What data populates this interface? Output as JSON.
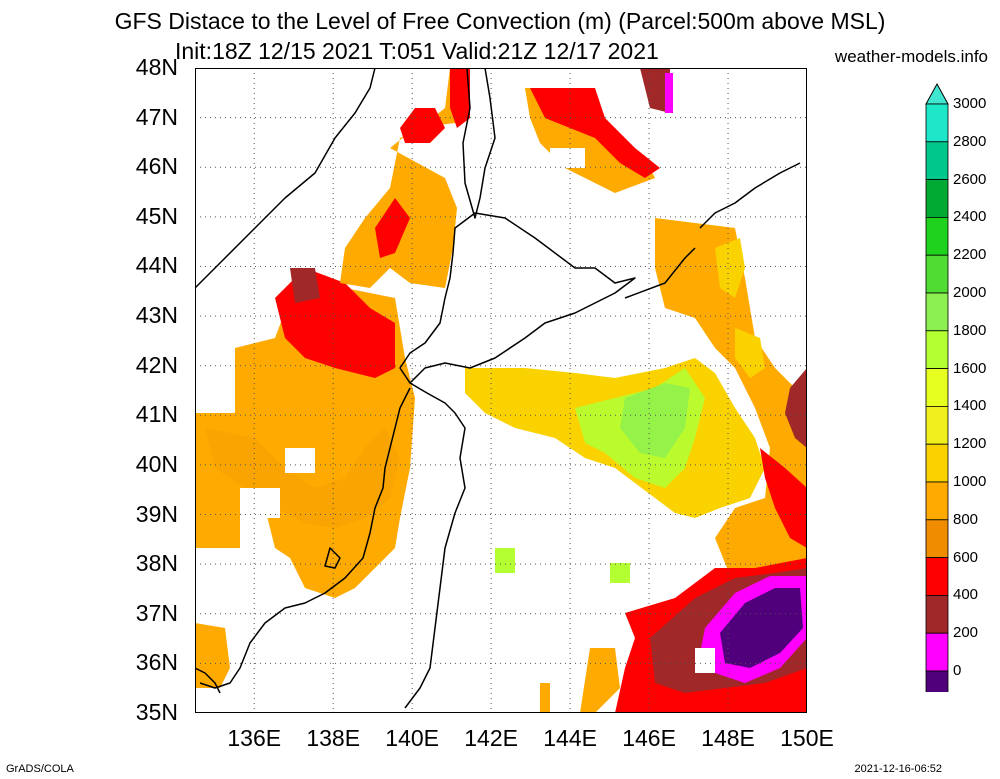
{
  "header": {
    "title": "GFS Distace to the Level of Free Convection (m) (Parcel:500m above MSL)",
    "subtitle": "Init:18Z 12/15 2021 T:051 Valid:21Z 12/17 2021",
    "site": "weather-models.info"
  },
  "footer": {
    "left": "GrADS/COLA",
    "right": "2021-12-16-06:52"
  },
  "axes": {
    "lat_ticks": [
      "48N",
      "47N",
      "46N",
      "45N",
      "44N",
      "43N",
      "42N",
      "41N",
      "40N",
      "39N",
      "38N",
      "37N",
      "36N",
      "35N"
    ],
    "lon_ticks": [
      "136E",
      "138E",
      "140E",
      "142E",
      "144E",
      "146E",
      "148E",
      "150E"
    ],
    "lat_range": [
      35,
      48
    ],
    "lon_range": [
      134.5,
      150
    ],
    "grid": true
  },
  "colorbar": {
    "levels": [
      "3000",
      "2800",
      "2600",
      "2400",
      "2200",
      "2000",
      "1800",
      "1600",
      "1400",
      "1200",
      "1000",
      "800",
      "600",
      "400",
      "200",
      "0"
    ],
    "colors": [
      "#1ee6c8",
      "#00c88c",
      "#00aa32",
      "#1ed21e",
      "#50dc32",
      "#8cf050",
      "#b4ff32",
      "#e6ff1e",
      "#f0f01e",
      "#fad200",
      "#ffaa00",
      "#f08c00",
      "#ff0000",
      "#a02828",
      "#ff00ff",
      "#50007a"
    ],
    "arrow_top": "#40e6d0",
    "arrow_bottom": "#3c006e"
  }
}
